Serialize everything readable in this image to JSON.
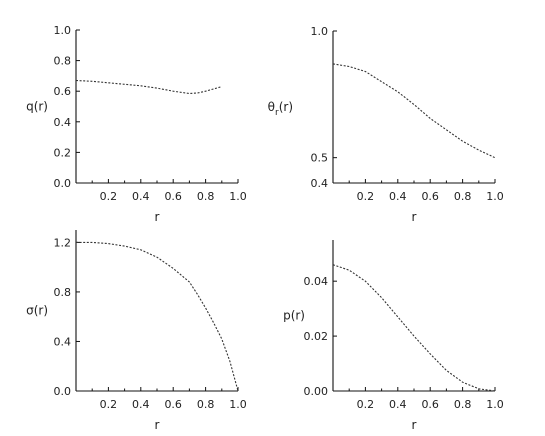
{
  "chart_data": [
    {
      "type": "line",
      "ylabel": "q(r)",
      "xlabel": "r",
      "xlim": [
        0.0,
        1.0
      ],
      "ylim": [
        0.0,
        1.0
      ],
      "x_ticks": [
        "0.2",
        "0.4",
        "0.6",
        "0.8",
        "1.0"
      ],
      "y_ticks": [
        "0.0",
        "0.2",
        "0.4",
        "0.6",
        "0.8",
        "1.0"
      ],
      "series": [
        {
          "x": [
            0.0,
            0.1,
            0.2,
            0.3,
            0.4,
            0.5,
            0.6,
            0.7,
            0.75,
            0.8,
            0.85,
            0.9
          ],
          "y": [
            0.67,
            0.665,
            0.655,
            0.645,
            0.635,
            0.62,
            0.6,
            0.585,
            0.588,
            0.6,
            0.615,
            0.63
          ]
        }
      ]
    },
    {
      "type": "line",
      "ylabel": "θr(r)",
      "ylabel_main": "θ",
      "ylabel_sub": "r",
      "ylabel_tail": "(r)",
      "xlabel": "r",
      "xlim": [
        0.0,
        1.0
      ],
      "ylim": [
        0.4,
        1.0
      ],
      "x_ticks": [
        "0.2",
        "0.4",
        "0.6",
        "0.8",
        "1.0"
      ],
      "y_ticks": [
        "0.4",
        "0.5",
        "1.0"
      ],
      "series": [
        {
          "x": [
            0.0,
            0.1,
            0.2,
            0.3,
            0.4,
            0.5,
            0.6,
            0.7,
            0.8,
            0.9,
            1.0
          ],
          "y": [
            0.87,
            0.86,
            0.84,
            0.8,
            0.76,
            0.71,
            0.655,
            0.61,
            0.565,
            0.53,
            0.5
          ]
        }
      ]
    },
    {
      "type": "line",
      "ylabel": "σ(r)",
      "xlabel": "r",
      "xlim": [
        0.0,
        1.0
      ],
      "ylim": [
        0.0,
        1.3
      ],
      "x_ticks": [
        "0.2",
        "0.4",
        "0.6",
        "0.8",
        "1.0"
      ],
      "y_ticks": [
        "0.0",
        "0.4",
        "0.8",
        "1.2"
      ],
      "series": [
        {
          "x": [
            0.0,
            0.1,
            0.2,
            0.3,
            0.4,
            0.5,
            0.6,
            0.7,
            0.75,
            0.8,
            0.85,
            0.9,
            0.95,
            1.0
          ],
          "y": [
            1.2,
            1.2,
            1.19,
            1.17,
            1.14,
            1.08,
            0.99,
            0.88,
            0.78,
            0.67,
            0.55,
            0.42,
            0.24,
            0.0
          ]
        }
      ]
    },
    {
      "type": "line",
      "ylabel": "p(r)",
      "xlabel": "r",
      "xlim": [
        0.0,
        1.0
      ],
      "ylim": [
        0.0,
        0.055
      ],
      "x_ticks": [
        "0.2",
        "0.4",
        "0.6",
        "0.8",
        "1.0"
      ],
      "y_ticks": [
        "0.00",
        "0.02",
        "0.04"
      ],
      "series": [
        {
          "x": [
            0.0,
            0.1,
            0.2,
            0.3,
            0.4,
            0.5,
            0.6,
            0.7,
            0.8,
            0.9,
            1.0
          ],
          "y": [
            0.046,
            0.044,
            0.04,
            0.034,
            0.027,
            0.02,
            0.0135,
            0.0075,
            0.0032,
            0.0008,
            0.0
          ]
        }
      ]
    }
  ]
}
